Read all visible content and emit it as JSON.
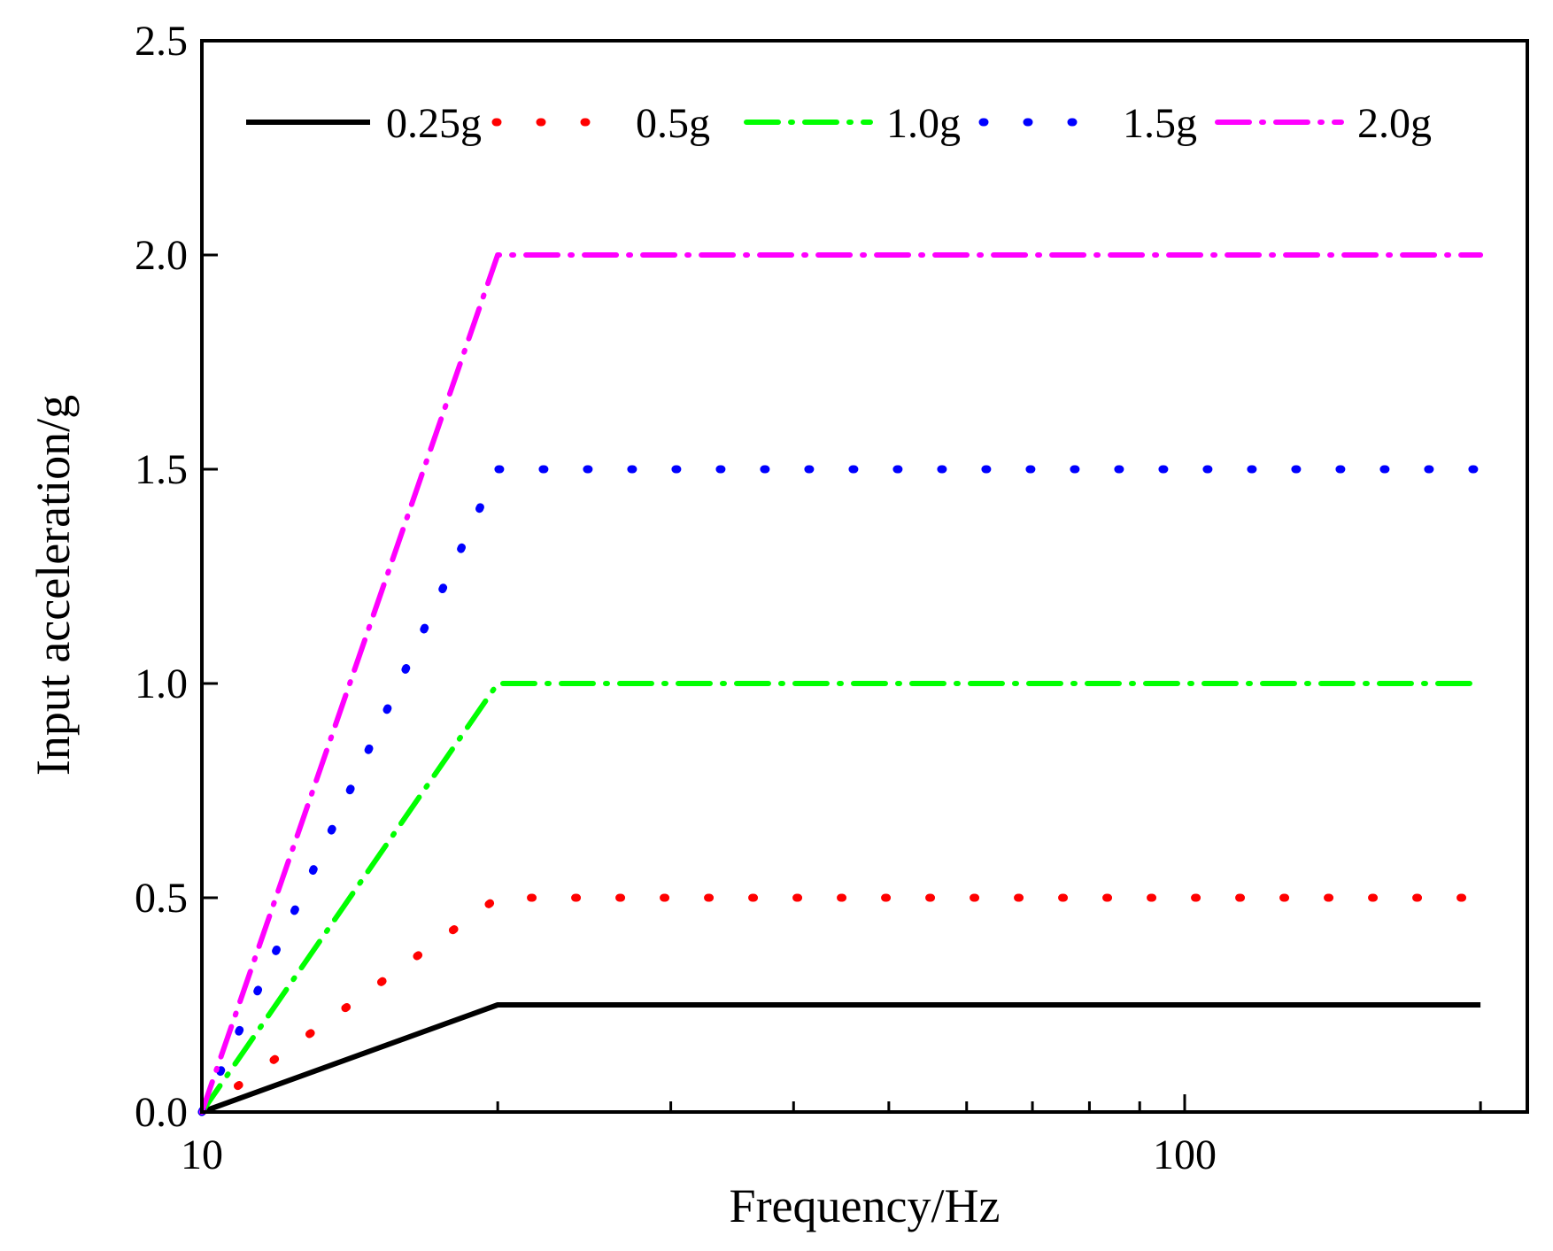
{
  "chart_data": {
    "type": "line",
    "title": "",
    "xlabel": "Frequency/Hz",
    "ylabel": "Input acceleration/g",
    "x_scale": "log",
    "xlim": [
      10,
      200
    ],
    "ylim": [
      0,
      2.5
    ],
    "x_ticks": [
      10,
      100
    ],
    "x_minor_ticks": [
      20,
      30,
      40,
      50,
      60,
      70,
      80,
      90,
      200
    ],
    "x_tick_labels": [
      "10",
      "100"
    ],
    "y_ticks": [
      0,
      0.5,
      1.0,
      1.5,
      2.0,
      2.5
    ],
    "y_tick_labels": [
      "0.0",
      "0.5",
      "1.0",
      "1.5",
      "2.0",
      "2.5"
    ],
    "grid": false,
    "legend_position": "top",
    "series": [
      {
        "name": "0.25g",
        "color": "#000000",
        "style": "solid",
        "x": [
          10,
          20,
          200
        ],
        "y": [
          0,
          0.25,
          0.25
        ]
      },
      {
        "name": "0.5g",
        "color": "#ff0000",
        "style": "dot",
        "x": [
          10,
          20,
          200
        ],
        "y": [
          0,
          0.5,
          0.5
        ]
      },
      {
        "name": "1.0g",
        "color": "#00ff00",
        "style": "dashdot",
        "x": [
          10,
          20,
          200
        ],
        "y": [
          0,
          1.0,
          1.0
        ]
      },
      {
        "name": "1.5g",
        "color": "#0000ff",
        "style": "dot",
        "x": [
          10,
          20,
          200
        ],
        "y": [
          0,
          1.5,
          1.5
        ]
      },
      {
        "name": "2.0g",
        "color": "#ff00ff",
        "style": "dashdot",
        "x": [
          10,
          20,
          200
        ],
        "y": [
          0,
          2.0,
          2.0
        ]
      }
    ]
  }
}
